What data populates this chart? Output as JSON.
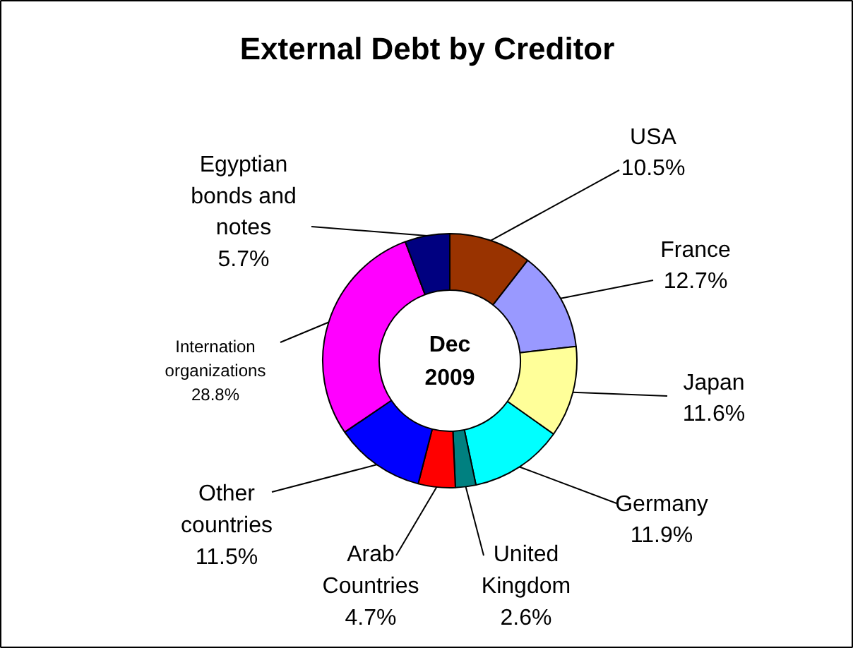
{
  "chart_data": {
    "type": "donut",
    "title": "External Debt by Creditor",
    "categories": [
      "USA",
      "France",
      "Japan",
      "Germany",
      "United Kingdom",
      "Arab Countries",
      "Other countries",
      "Internation organizations",
      "Egyptian bonds and notes"
    ],
    "values": [
      10.5,
      12.7,
      11.6,
      11.9,
      2.6,
      4.7,
      11.5,
      28.8,
      5.7
    ],
    "value_labels": [
      "10.5%",
      "12.7%",
      "11.6%",
      "11.9%",
      "2.6%",
      "4.7%",
      "11.5%",
      "28.8%",
      "5.7%"
    ],
    "colors": [
      "#993300",
      "#9999ff",
      "#ffff99",
      "#00ffff",
      "#008080",
      "#ff0000",
      "#0000ff",
      "#ff00ff",
      "#000080"
    ],
    "annotations": [
      "Dec 2009"
    ]
  }
}
